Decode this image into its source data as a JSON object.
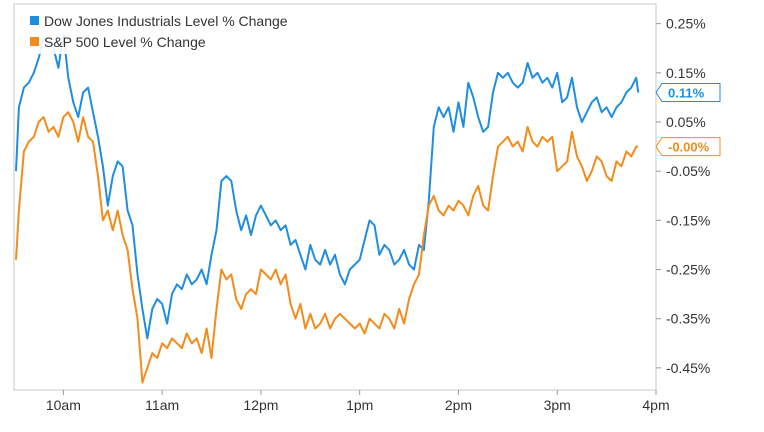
{
  "chart_data": {
    "type": "line",
    "title": "",
    "xlabel": "",
    "ylabel": "",
    "x_ticks": [
      "10am",
      "11am",
      "12pm",
      "1pm",
      "2pm",
      "3pm",
      "4pm"
    ],
    "y_ticks": [
      "0.25%",
      "0.15%",
      "0.05%",
      "-0.05%",
      "-0.15%",
      "-0.25%",
      "-0.35%",
      "-0.45%"
    ],
    "ylim": [
      -0.495,
      0.29
    ],
    "xlim": [
      9.5,
      16.0
    ],
    "grid": false,
    "legend_position": "top-left",
    "series": [
      {
        "name": "Dow Jones Industrials Level % Change",
        "color": "#1f8ee0",
        "last_label": "0.11%",
        "points": [
          [
            9.52,
            -0.05
          ],
          [
            9.55,
            0.08
          ],
          [
            9.6,
            0.12
          ],
          [
            9.65,
            0.13
          ],
          [
            9.7,
            0.15
          ],
          [
            9.75,
            0.18
          ],
          [
            9.8,
            0.22
          ],
          [
            9.85,
            0.21
          ],
          [
            9.9,
            0.2
          ],
          [
            9.95,
            0.16
          ],
          [
            10.0,
            0.23
          ],
          [
            10.05,
            0.14
          ],
          [
            10.1,
            0.09
          ],
          [
            10.15,
            0.06
          ],
          [
            10.2,
            0.11
          ],
          [
            10.25,
            0.12
          ],
          [
            10.3,
            0.07
          ],
          [
            10.35,
            0.02
          ],
          [
            10.4,
            -0.04
          ],
          [
            10.45,
            -0.12
          ],
          [
            10.5,
            -0.06
          ],
          [
            10.55,
            -0.03
          ],
          [
            10.6,
            -0.04
          ],
          [
            10.65,
            -0.13
          ],
          [
            10.7,
            -0.16
          ],
          [
            10.75,
            -0.26
          ],
          [
            10.8,
            -0.33
          ],
          [
            10.85,
            -0.39
          ],
          [
            10.9,
            -0.33
          ],
          [
            10.95,
            -0.31
          ],
          [
            11.0,
            -0.32
          ],
          [
            11.05,
            -0.36
          ],
          [
            11.1,
            -0.3
          ],
          [
            11.15,
            -0.28
          ],
          [
            11.2,
            -0.29
          ],
          [
            11.25,
            -0.26
          ],
          [
            11.3,
            -0.28
          ],
          [
            11.35,
            -0.27
          ],
          [
            11.4,
            -0.25
          ],
          [
            11.45,
            -0.28
          ],
          [
            11.5,
            -0.22
          ],
          [
            11.55,
            -0.17
          ],
          [
            11.6,
            -0.07
          ],
          [
            11.65,
            -0.06
          ],
          [
            11.7,
            -0.07
          ],
          [
            11.75,
            -0.13
          ],
          [
            11.8,
            -0.17
          ],
          [
            11.85,
            -0.14
          ],
          [
            11.9,
            -0.18
          ],
          [
            11.95,
            -0.14
          ],
          [
            12.0,
            -0.12
          ],
          [
            12.05,
            -0.14
          ],
          [
            12.1,
            -0.16
          ],
          [
            12.15,
            -0.15
          ],
          [
            12.2,
            -0.17
          ],
          [
            12.25,
            -0.16
          ],
          [
            12.3,
            -0.2
          ],
          [
            12.35,
            -0.19
          ],
          [
            12.4,
            -0.22
          ],
          [
            12.45,
            -0.25
          ],
          [
            12.5,
            -0.2
          ],
          [
            12.55,
            -0.23
          ],
          [
            12.6,
            -0.24
          ],
          [
            12.65,
            -0.21
          ],
          [
            12.7,
            -0.24
          ],
          [
            12.75,
            -0.22
          ],
          [
            12.8,
            -0.26
          ],
          [
            12.85,
            -0.28
          ],
          [
            12.9,
            -0.25
          ],
          [
            12.95,
            -0.24
          ],
          [
            13.0,
            -0.23
          ],
          [
            13.05,
            -0.19
          ],
          [
            13.1,
            -0.15
          ],
          [
            13.15,
            -0.16
          ],
          [
            13.2,
            -0.22
          ],
          [
            13.25,
            -0.2
          ],
          [
            13.3,
            -0.21
          ],
          [
            13.35,
            -0.24
          ],
          [
            13.4,
            -0.23
          ],
          [
            13.45,
            -0.21
          ],
          [
            13.5,
            -0.24
          ],
          [
            13.55,
            -0.25
          ],
          [
            13.6,
            -0.2
          ],
          [
            13.65,
            -0.21
          ],
          [
            13.7,
            -0.11
          ],
          [
            13.75,
            0.04
          ],
          [
            13.8,
            0.08
          ],
          [
            13.85,
            0.06
          ],
          [
            13.9,
            0.08
          ],
          [
            13.95,
            0.03
          ],
          [
            14.0,
            0.09
          ],
          [
            14.05,
            0.04
          ],
          [
            14.1,
            0.13
          ],
          [
            14.15,
            0.1
          ],
          [
            14.2,
            0.06
          ],
          [
            14.25,
            0.03
          ],
          [
            14.3,
            0.04
          ],
          [
            14.35,
            0.11
          ],
          [
            14.4,
            0.15
          ],
          [
            14.45,
            0.14
          ],
          [
            14.5,
            0.15
          ],
          [
            14.55,
            0.13
          ],
          [
            14.6,
            0.12
          ],
          [
            14.65,
            0.13
          ],
          [
            14.7,
            0.17
          ],
          [
            14.75,
            0.14
          ],
          [
            14.8,
            0.15
          ],
          [
            14.85,
            0.13
          ],
          [
            14.9,
            0.14
          ],
          [
            14.95,
            0.12
          ],
          [
            15.0,
            0.15
          ],
          [
            15.05,
            0.09
          ],
          [
            15.1,
            0.1
          ],
          [
            15.15,
            0.14
          ],
          [
            15.2,
            0.08
          ],
          [
            15.25,
            0.05
          ],
          [
            15.3,
            0.07
          ],
          [
            15.35,
            0.09
          ],
          [
            15.4,
            0.1
          ],
          [
            15.45,
            0.07
          ],
          [
            15.5,
            0.08
          ],
          [
            15.55,
            0.06
          ],
          [
            15.6,
            0.08
          ],
          [
            15.65,
            0.09
          ],
          [
            15.7,
            0.11
          ],
          [
            15.75,
            0.12
          ],
          [
            15.8,
            0.14
          ],
          [
            15.82,
            0.11
          ]
        ]
      },
      {
        "name": "S&P 500 Level % Change",
        "color": "#f28c1c",
        "last_label": "-0.00%",
        "points": [
          [
            9.52,
            -0.23
          ],
          [
            9.55,
            -0.13
          ],
          [
            9.6,
            -0.01
          ],
          [
            9.65,
            0.01
          ],
          [
            9.7,
            0.02
          ],
          [
            9.75,
            0.05
          ],
          [
            9.8,
            0.06
          ],
          [
            9.85,
            0.03
          ],
          [
            9.9,
            0.04
          ],
          [
            9.95,
            0.02
          ],
          [
            10.0,
            0.06
          ],
          [
            10.05,
            0.07
          ],
          [
            10.1,
            0.05
          ],
          [
            10.15,
            0.01
          ],
          [
            10.2,
            0.06
          ],
          [
            10.25,
            0.02
          ],
          [
            10.3,
            0.01
          ],
          [
            10.35,
            -0.06
          ],
          [
            10.4,
            -0.15
          ],
          [
            10.45,
            -0.13
          ],
          [
            10.5,
            -0.17
          ],
          [
            10.55,
            -0.13
          ],
          [
            10.6,
            -0.18
          ],
          [
            10.65,
            -0.21
          ],
          [
            10.7,
            -0.29
          ],
          [
            10.75,
            -0.35
          ],
          [
            10.8,
            -0.48
          ],
          [
            10.85,
            -0.45
          ],
          [
            10.9,
            -0.42
          ],
          [
            10.95,
            -0.43
          ],
          [
            11.0,
            -0.4
          ],
          [
            11.05,
            -0.41
          ],
          [
            11.1,
            -0.39
          ],
          [
            11.15,
            -0.4
          ],
          [
            11.2,
            -0.41
          ],
          [
            11.25,
            -0.38
          ],
          [
            11.3,
            -0.4
          ],
          [
            11.35,
            -0.39
          ],
          [
            11.4,
            -0.42
          ],
          [
            11.45,
            -0.37
          ],
          [
            11.5,
            -0.43
          ],
          [
            11.55,
            -0.33
          ],
          [
            11.6,
            -0.25
          ],
          [
            11.65,
            -0.27
          ],
          [
            11.7,
            -0.26
          ],
          [
            11.75,
            -0.31
          ],
          [
            11.8,
            -0.33
          ],
          [
            11.85,
            -0.3
          ],
          [
            11.9,
            -0.29
          ],
          [
            11.95,
            -0.3
          ],
          [
            12.0,
            -0.25
          ],
          [
            12.05,
            -0.26
          ],
          [
            12.1,
            -0.27
          ],
          [
            12.15,
            -0.25
          ],
          [
            12.2,
            -0.28
          ],
          [
            12.25,
            -0.26
          ],
          [
            12.3,
            -0.32
          ],
          [
            12.35,
            -0.35
          ],
          [
            12.4,
            -0.32
          ],
          [
            12.45,
            -0.37
          ],
          [
            12.5,
            -0.34
          ],
          [
            12.55,
            -0.37
          ],
          [
            12.6,
            -0.36
          ],
          [
            12.65,
            -0.34
          ],
          [
            12.7,
            -0.37
          ],
          [
            12.75,
            -0.35
          ],
          [
            12.8,
            -0.34
          ],
          [
            12.85,
            -0.35
          ],
          [
            12.9,
            -0.36
          ],
          [
            12.95,
            -0.37
          ],
          [
            13.0,
            -0.36
          ],
          [
            13.05,
            -0.38
          ],
          [
            13.1,
            -0.35
          ],
          [
            13.15,
            -0.36
          ],
          [
            13.2,
            -0.37
          ],
          [
            13.25,
            -0.34
          ],
          [
            13.3,
            -0.35
          ],
          [
            13.35,
            -0.37
          ],
          [
            13.4,
            -0.33
          ],
          [
            13.45,
            -0.36
          ],
          [
            13.5,
            -0.31
          ],
          [
            13.55,
            -0.28
          ],
          [
            13.6,
            -0.26
          ],
          [
            13.65,
            -0.18
          ],
          [
            13.7,
            -0.12
          ],
          [
            13.75,
            -0.1
          ],
          [
            13.8,
            -0.13
          ],
          [
            13.85,
            -0.14
          ],
          [
            13.9,
            -0.12
          ],
          [
            13.95,
            -0.13
          ],
          [
            14.0,
            -0.11
          ],
          [
            14.05,
            -0.12
          ],
          [
            14.1,
            -0.14
          ],
          [
            14.15,
            -0.1
          ],
          [
            14.2,
            -0.08
          ],
          [
            14.25,
            -0.12
          ],
          [
            14.3,
            -0.13
          ],
          [
            14.35,
            -0.06
          ],
          [
            14.4,
            0.0
          ],
          [
            14.45,
            0.01
          ],
          [
            14.5,
            0.02
          ],
          [
            14.55,
            0.0
          ],
          [
            14.6,
            0.01
          ],
          [
            14.65,
            -0.01
          ],
          [
            14.7,
            0.04
          ],
          [
            14.75,
            0.01
          ],
          [
            14.8,
            0.0
          ],
          [
            14.85,
            0.02
          ],
          [
            14.9,
            0.01
          ],
          [
            14.95,
            0.02
          ],
          [
            15.0,
            -0.05
          ],
          [
            15.05,
            -0.04
          ],
          [
            15.1,
            -0.03
          ],
          [
            15.15,
            0.03
          ],
          [
            15.2,
            -0.02
          ],
          [
            15.25,
            -0.04
          ],
          [
            15.3,
            -0.07
          ],
          [
            15.35,
            -0.05
          ],
          [
            15.4,
            -0.02
          ],
          [
            15.45,
            -0.03
          ],
          [
            15.5,
            -0.06
          ],
          [
            15.55,
            -0.07
          ],
          [
            15.6,
            -0.03
          ],
          [
            15.65,
            -0.04
          ],
          [
            15.7,
            -0.01
          ],
          [
            15.75,
            -0.02
          ],
          [
            15.8,
            0.0
          ],
          [
            15.82,
            0.0
          ]
        ]
      }
    ]
  }
}
